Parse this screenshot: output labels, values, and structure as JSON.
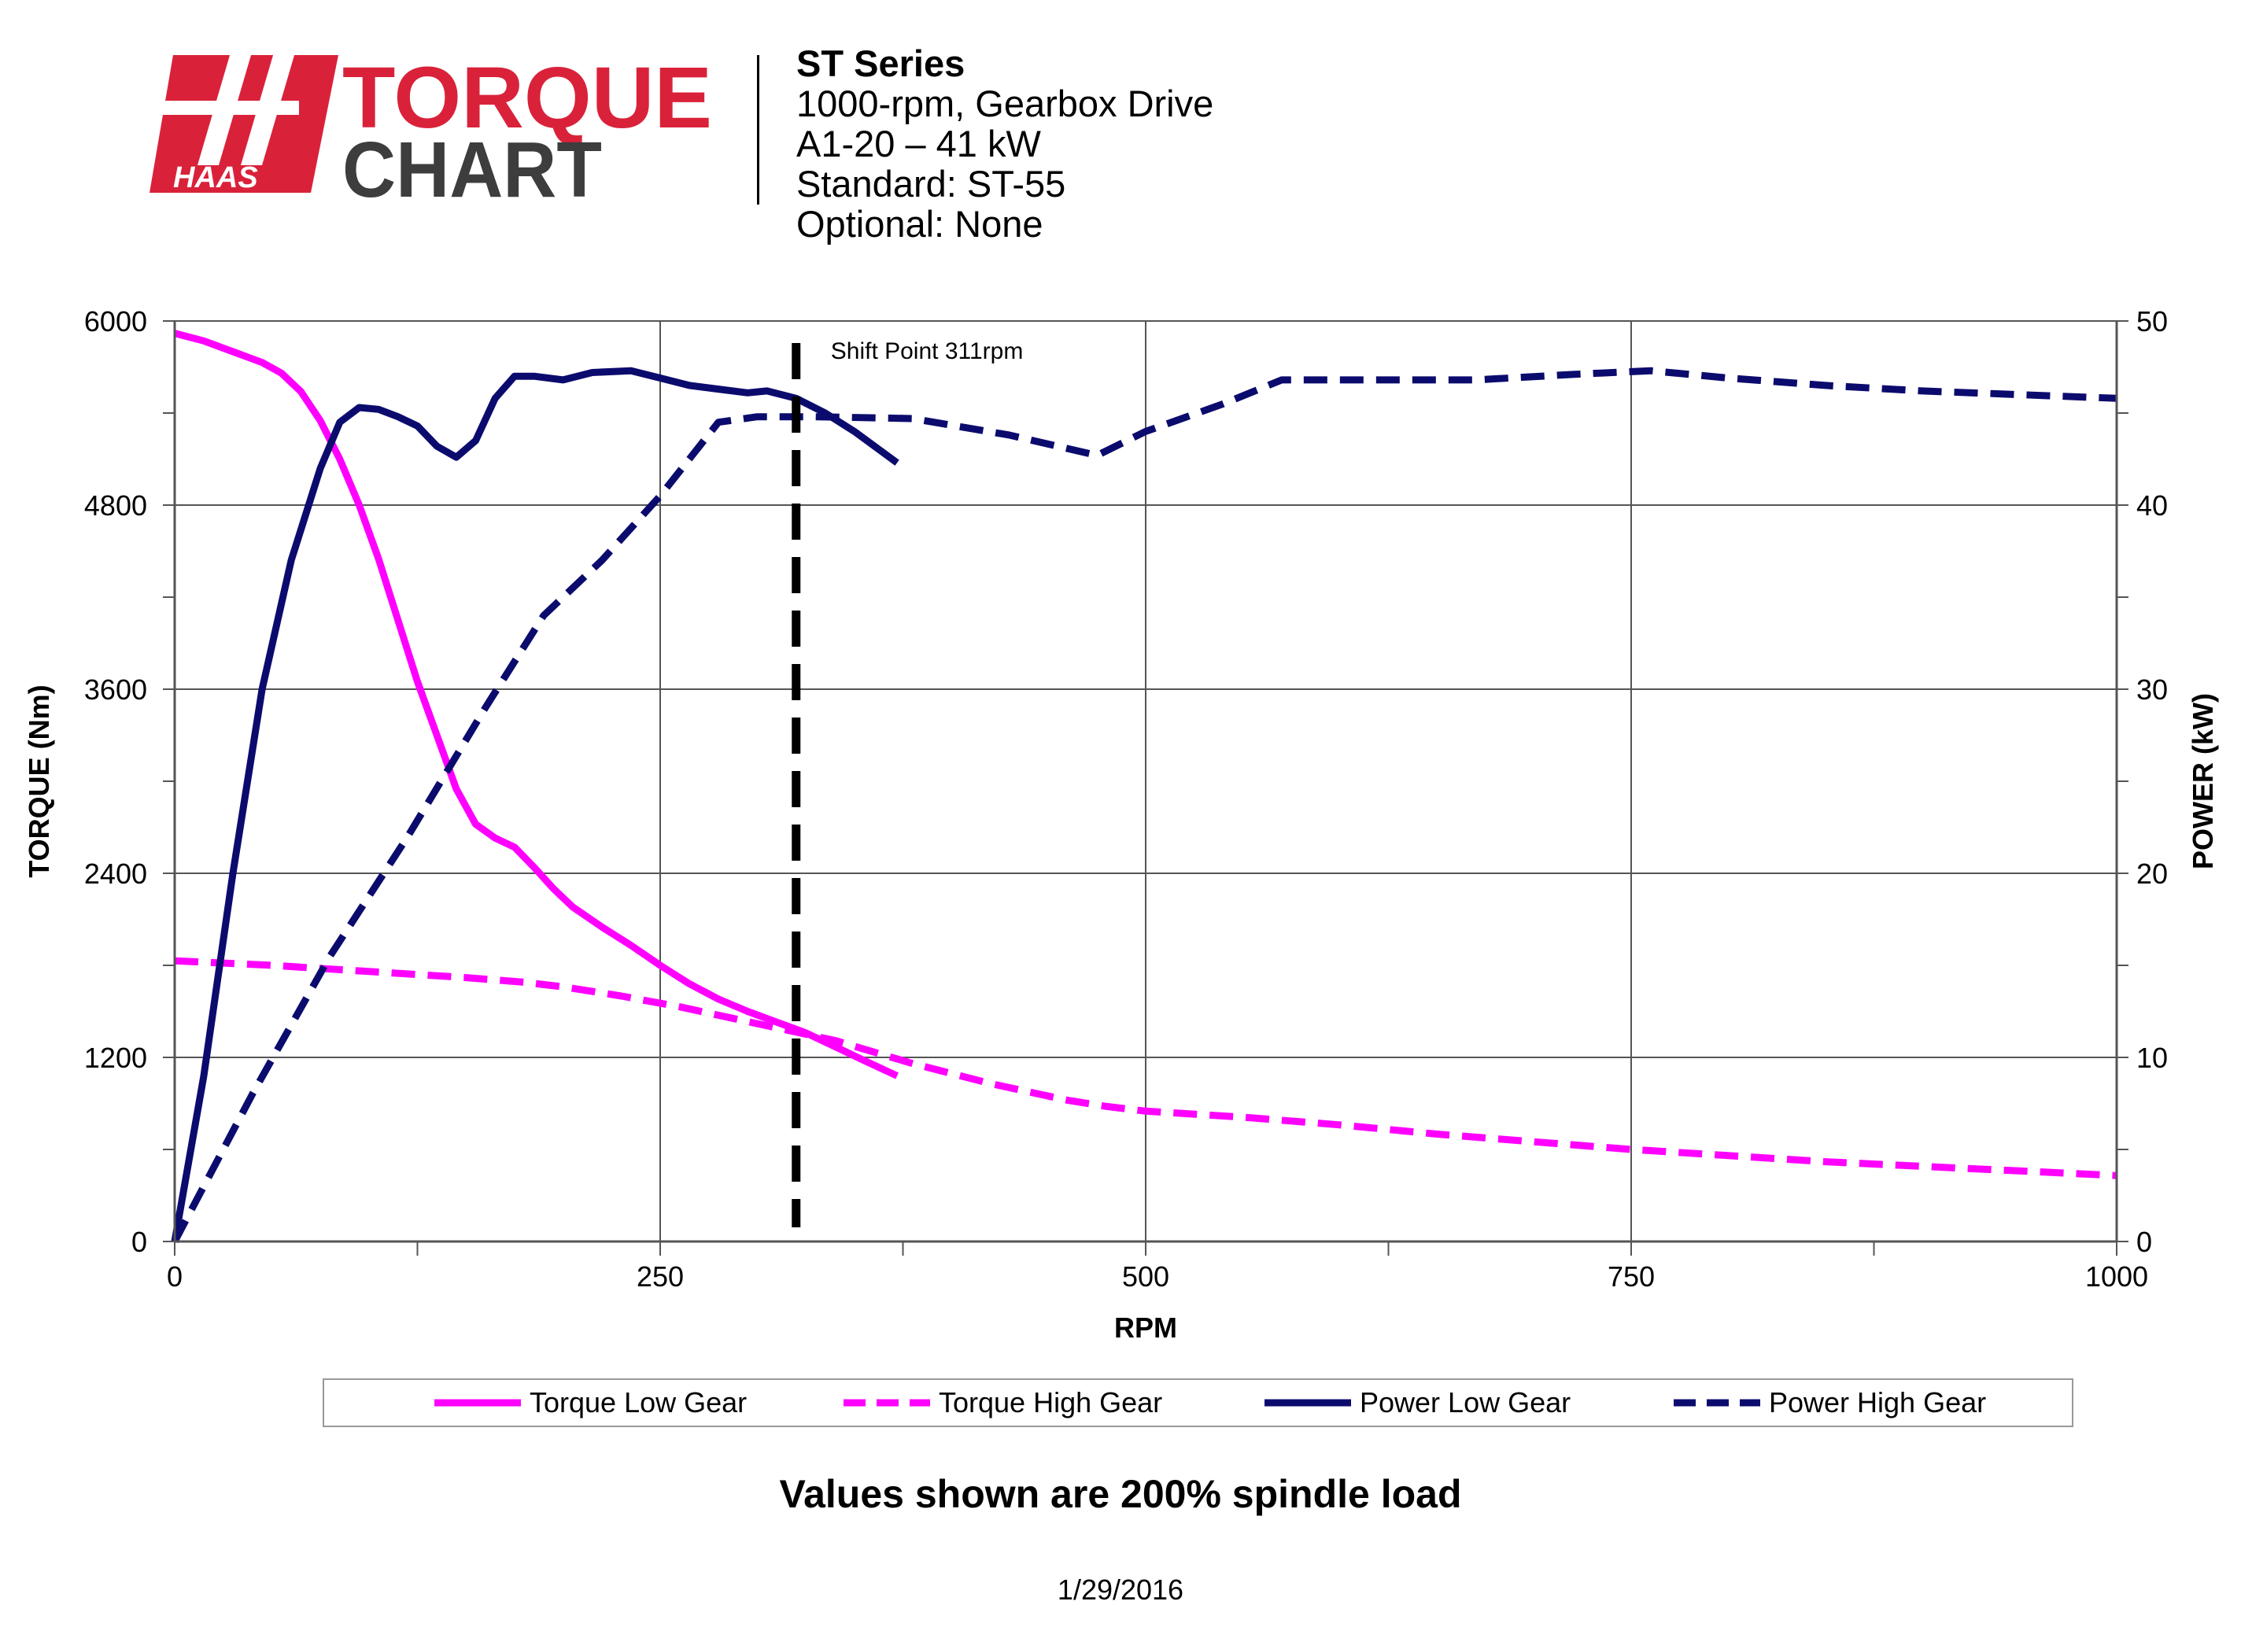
{
  "logo": {
    "brand": "HAAS",
    "line1": "TORQUE",
    "line2": "CHART",
    "colors": {
      "red": "#d9223a",
      "dark": "#3d3d3d"
    }
  },
  "header": {
    "title": "ST Series",
    "lines": [
      "1000-rpm, Gearbox Drive",
      "A1-20 – 41 kW",
      "Standard: ST-55",
      "Optional: None"
    ]
  },
  "footnote": "Values shown are 200% spindle load",
  "date": "1/29/2016",
  "chart_data": {
    "type": "line",
    "xlabel": "RPM",
    "ylabel": "TORQUE (Nm)",
    "y2label": "POWER (kW)",
    "xlim": [
      0,
      1000
    ],
    "ylim": [
      0,
      6000
    ],
    "y2lim": [
      0,
      50
    ],
    "xticks": [
      0,
      250,
      500,
      750,
      1000
    ],
    "yticks": [
      0,
      1200,
      2400,
      3600,
      4800,
      6000
    ],
    "y2ticks": [
      0,
      10,
      20,
      30,
      40,
      50
    ],
    "grid": true,
    "legend_position": "bottom",
    "annotation": {
      "text": "Shift Point 311rpm",
      "x": 320
    },
    "series": [
      {
        "name": "Torque Low Gear",
        "axis": "left",
        "color": "#ff00ff",
        "dash": false,
        "x": [
          0,
          15,
          30,
          45,
          55,
          65,
          75,
          85,
          95,
          105,
          115,
          125,
          135,
          145,
          155,
          165,
          175,
          185,
          195,
          205,
          220,
          235,
          250,
          265,
          280,
          295,
          310,
          325,
          340,
          355,
          372
        ],
        "y": [
          5920,
          5870,
          5800,
          5730,
          5660,
          5540,
          5350,
          5100,
          4800,
          4450,
          4050,
          3650,
          3300,
          2950,
          2720,
          2630,
          2570,
          2440,
          2300,
          2180,
          2050,
          1930,
          1800,
          1680,
          1580,
          1500,
          1430,
          1360,
          1270,
          1180,
          1080
        ]
      },
      {
        "name": "Torque High Gear",
        "axis": "left",
        "color": "#ff00ff",
        "dash": true,
        "x": [
          0,
          50,
          100,
          150,
          180,
          200,
          230,
          260,
          300,
          340,
          380,
          420,
          460,
          480,
          500,
          550,
          600,
          650,
          700,
          750,
          800,
          850,
          900,
          950,
          1000
        ],
        "y": [
          1830,
          1800,
          1760,
          1720,
          1690,
          1660,
          1600,
          1530,
          1420,
          1310,
          1160,
          1030,
          920,
          880,
          850,
          810,
          760,
          700,
          650,
          600,
          560,
          520,
          490,
          460,
          430
        ]
      },
      {
        "name": "Power Low Gear",
        "axis": "right",
        "color": "#0b0b6e",
        "dash": false,
        "x": [
          0,
          15,
          30,
          45,
          60,
          75,
          85,
          95,
          105,
          115,
          125,
          135,
          145,
          155,
          165,
          175,
          185,
          200,
          215,
          235,
          250,
          265,
          280,
          295,
          305,
          320,
          335,
          350,
          372
        ],
        "y": [
          0,
          9,
          20,
          30,
          37,
          42,
          44.5,
          45.3,
          45.2,
          44.8,
          44.3,
          43.2,
          42.6,
          43.5,
          45.8,
          47,
          47,
          46.8,
          47.2,
          47.3,
          46.9,
          46.5,
          46.3,
          46.1,
          46.2,
          45.8,
          45,
          44,
          42.3
        ]
      },
      {
        "name": "Power High Gear",
        "axis": "right",
        "color": "#0b0b6e",
        "dash": true,
        "x": [
          0,
          40,
          80,
          120,
          160,
          190,
          220,
          250,
          280,
          300,
          330,
          380,
          430,
          475,
          500,
          540,
          570,
          620,
          670,
          720,
          760,
          800,
          850,
          900,
          950,
          1000
        ],
        "y": [
          0,
          8,
          15.5,
          22,
          29,
          34,
          37,
          40.5,
          44.5,
          44.8,
          44.8,
          44.7,
          43.8,
          42.7,
          44,
          45.5,
          46.8,
          46.8,
          46.8,
          47.1,
          47.3,
          46.9,
          46.5,
          46.2,
          46,
          45.8
        ]
      }
    ]
  }
}
